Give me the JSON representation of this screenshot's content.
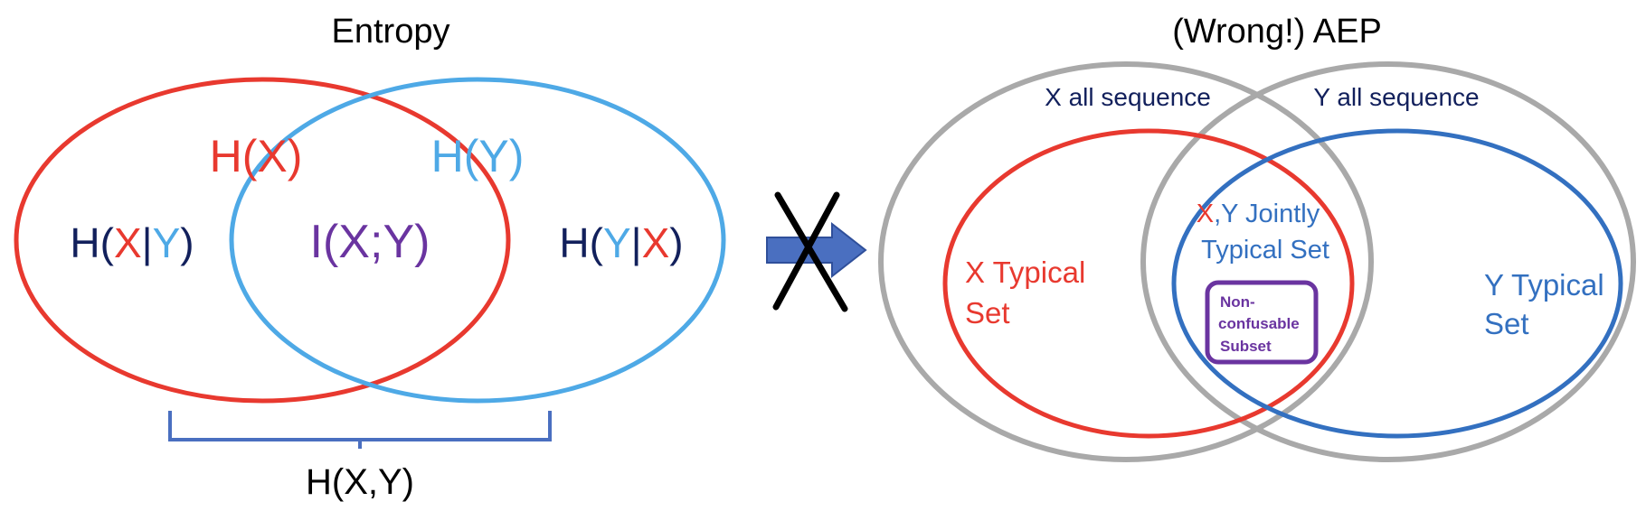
{
  "left": {
    "title": "Entropy",
    "hx": {
      "label": "H(",
      "arg": "X",
      "close": ")"
    },
    "hy": {
      "label": "H(",
      "arg": "Y",
      "close": ")"
    },
    "hx_given_y": {
      "open": "H(",
      "a": "X",
      "bar": "|",
      "b": "Y",
      "close": ")"
    },
    "mutual": {
      "text": "I(X;Y)"
    },
    "hy_given_x": {
      "open": "H(",
      "a": "Y",
      "bar": "|",
      "b": "X",
      "close": ")"
    },
    "joint": "H(X,Y)"
  },
  "right": {
    "title": "(Wrong!) AEP",
    "x_all": "X all sequence",
    "y_all": "Y all sequence",
    "x_typical": [
      "X Typical",
      "Set"
    ],
    "y_typical": [
      "Y Typical",
      "Set"
    ],
    "jointly": {
      "x": "X",
      "rest": ",Y Jointly",
      "line2": "Typical Set"
    },
    "nonconf": [
      "Non-",
      "confusable",
      "Subset"
    ]
  },
  "colors": {
    "red": "#e8392f",
    "light_blue": "#4ea9e6",
    "navy": "#12205c",
    "purple": "#6a34a0",
    "gray": "#a9a9a9",
    "blue": "#3370c0",
    "brace": "#4a6fc0",
    "arrow": "#4a6fc0",
    "black": "#000000"
  },
  "icons": {
    "arrow": "right-arrow-icon",
    "cross": "cross-out-icon"
  }
}
